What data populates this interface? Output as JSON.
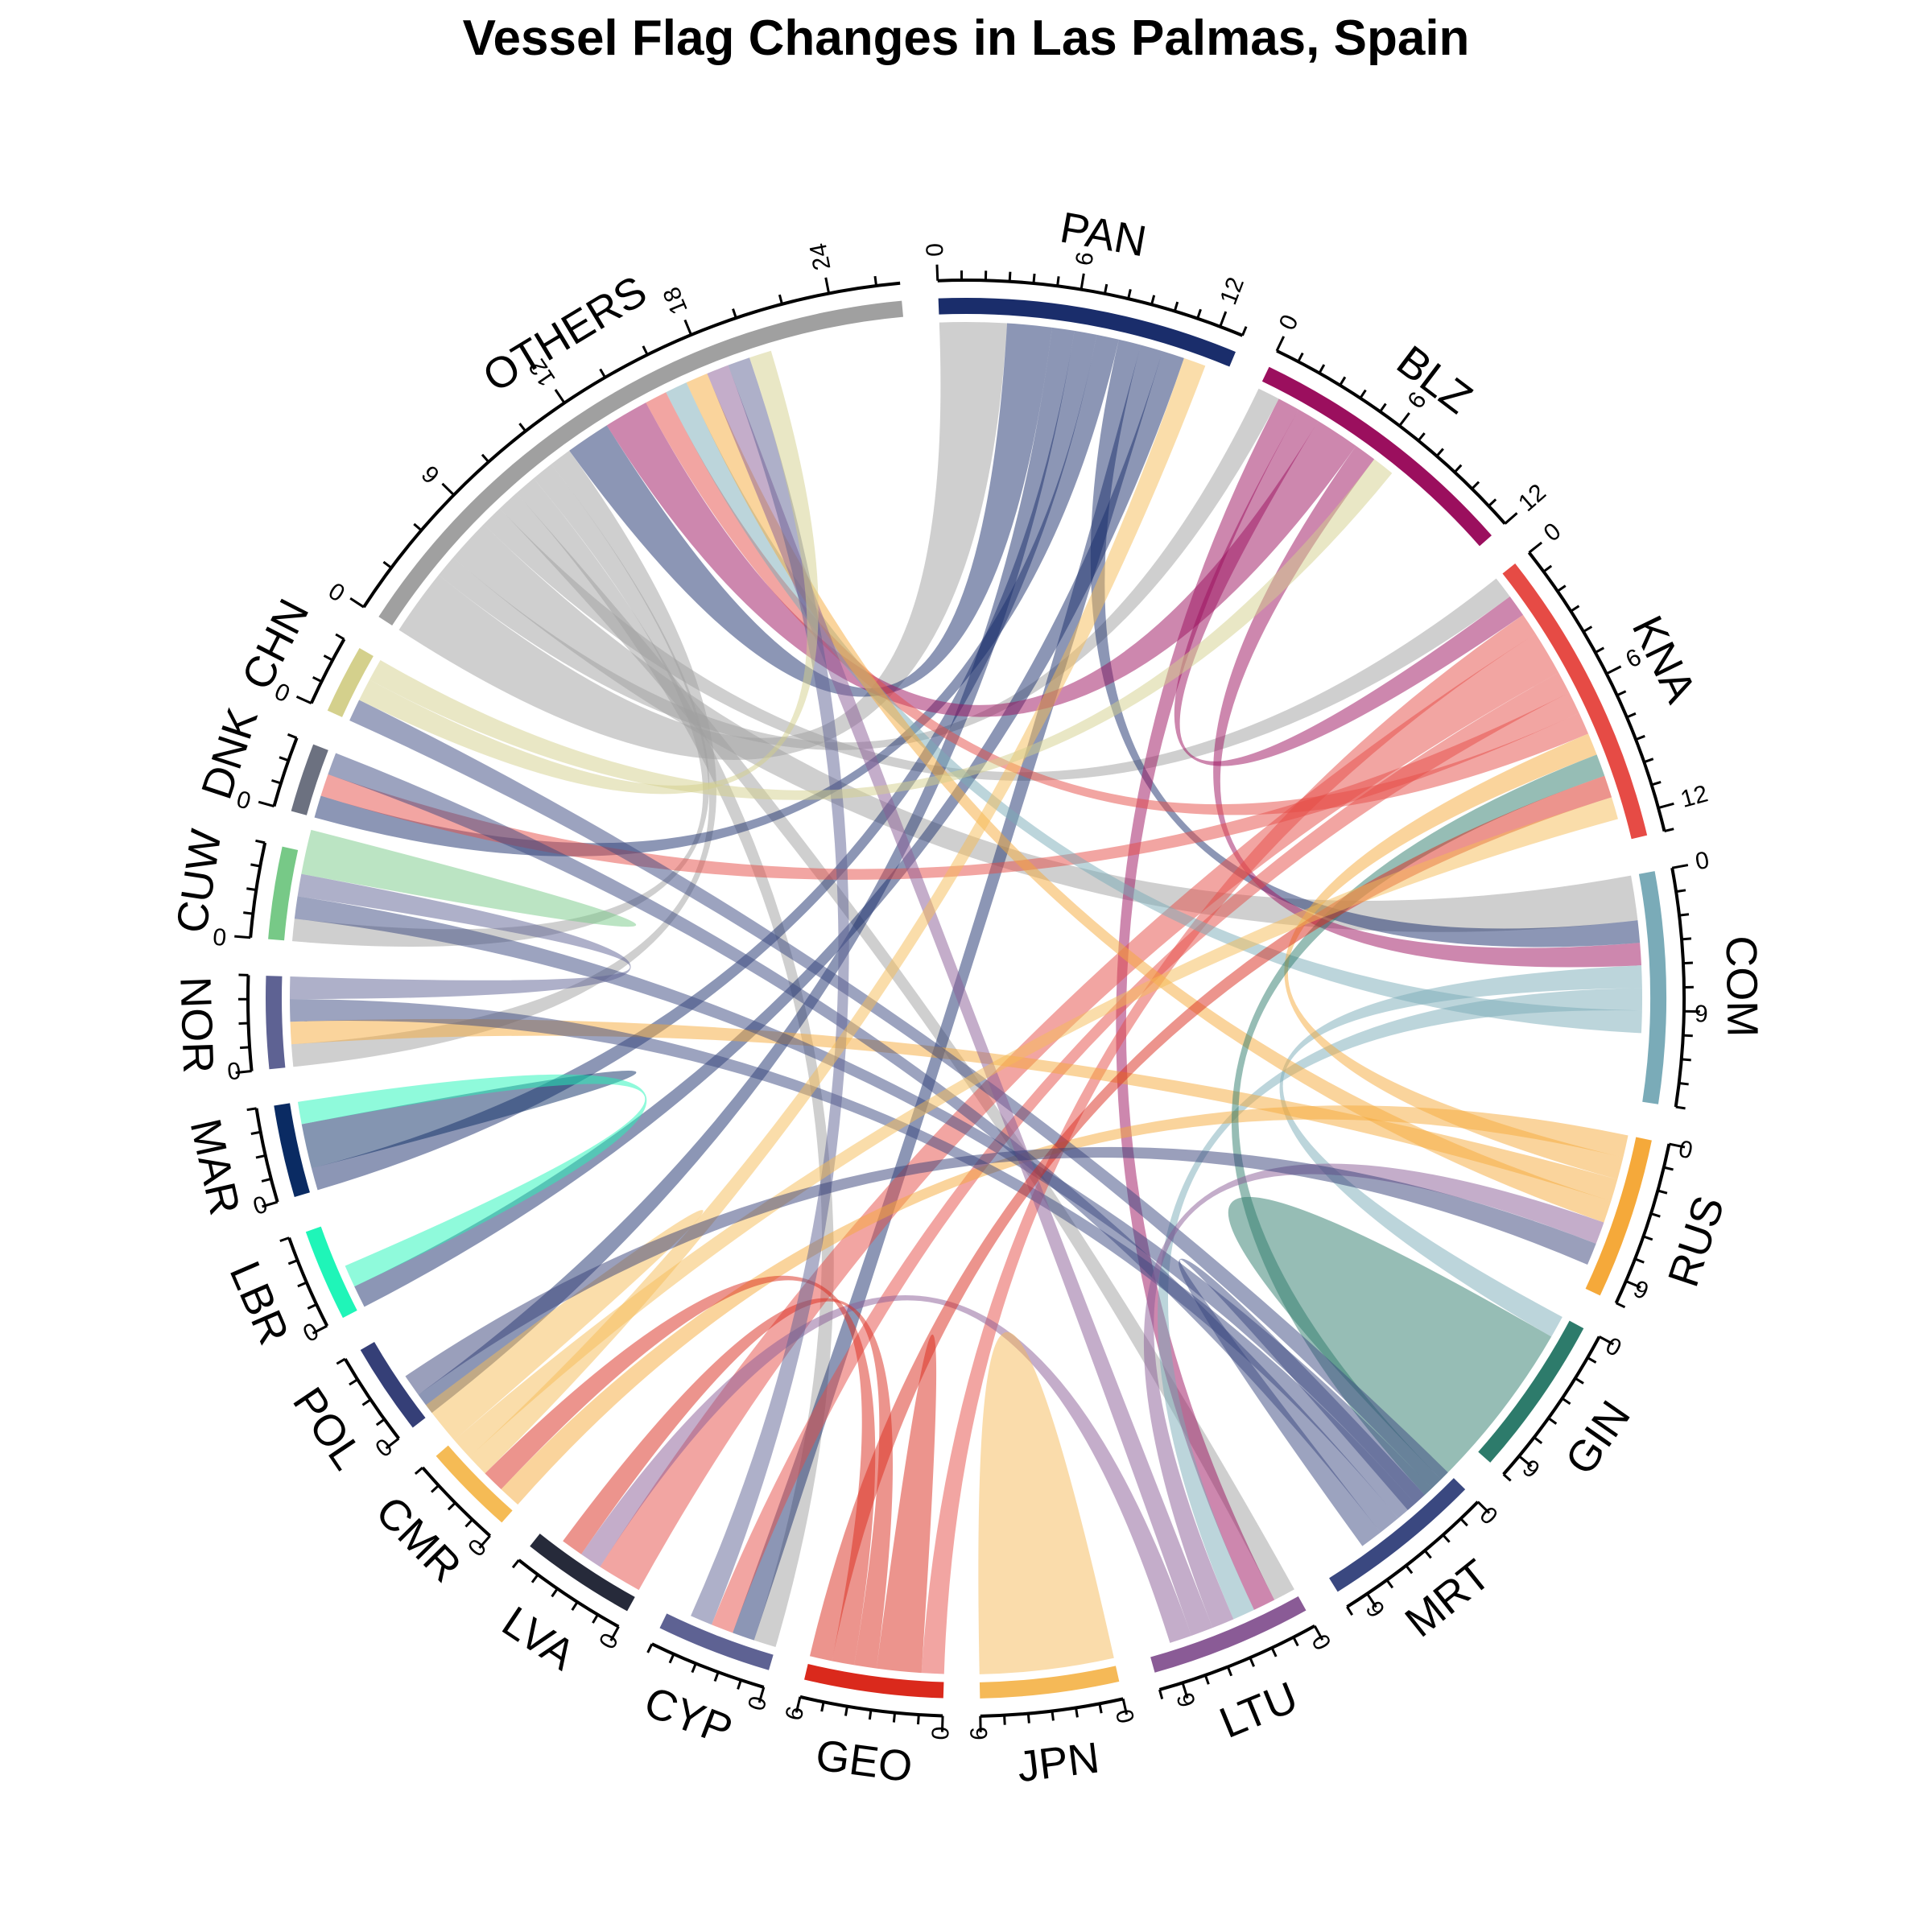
{
  "chart_data": {
    "type": "chord",
    "title": "Vessel Flag Changes in Las Palmas, Spain",
    "sectors": [
      {
        "name": "OTHERS",
        "total": 27,
        "color": "#A0A0A0",
        "ticks": [
          0,
          6,
          12,
          18,
          24
        ],
        "tick_step": 2
      },
      {
        "name": "PAN",
        "total": 13,
        "color": "#1A2D6B",
        "ticks": [
          0,
          6,
          12
        ],
        "tick_step": 1
      },
      {
        "name": "BLZ",
        "total": 12,
        "color": "#9B0F5E",
        "ticks": [
          0,
          6,
          12
        ],
        "tick_step": 1
      },
      {
        "name": "KNA",
        "total": 13,
        "color": "#E64B45",
        "ticks": [
          0,
          6,
          12
        ],
        "tick_step": 1
      },
      {
        "name": "COM",
        "total": 10,
        "color": "#7AABB8",
        "ticks": [
          0,
          6
        ],
        "tick_step": 1
      },
      {
        "name": "RUS",
        "total": 7,
        "color": "#F5A93A",
        "ticks": [
          0,
          6
        ],
        "tick_step": 1
      },
      {
        "name": "GIN",
        "total": 7,
        "color": "#2D7B6B",
        "ticks": [
          0,
          6
        ],
        "tick_step": 1
      },
      {
        "name": "MRT",
        "total": 7,
        "color": "#3A4880",
        "ticks": [
          0,
          6
        ],
        "tick_step": 1
      },
      {
        "name": "LTU",
        "total": 7,
        "color": "#8A5B96",
        "ticks": [
          0,
          6
        ],
        "tick_step": 1
      },
      {
        "name": "JPN",
        "total": 6,
        "color": "#F5B957",
        "ticks": [
          0,
          6
        ],
        "tick_step": 1
      },
      {
        "name": "GEO",
        "total": 6,
        "color": "#DA291C",
        "ticks": [
          0,
          6
        ],
        "tick_step": 1
      },
      {
        "name": "CYP",
        "total": 5,
        "color": "#5E6293",
        "ticks": [
          0
        ],
        "tick_step": 1
      },
      {
        "name": "LVA",
        "total": 5,
        "color": "#262A3A",
        "ticks": [
          0
        ],
        "tick_step": 1
      },
      {
        "name": "CMR",
        "total": 4,
        "color": "#F5BB55",
        "ticks": [
          0
        ],
        "tick_step": 1
      },
      {
        "name": "POL",
        "total": 4,
        "color": "#353F77",
        "ticks": [
          0
        ],
        "tick_step": 1
      },
      {
        "name": "LBR",
        "total": 4,
        "color": "#1FF5B8",
        "ticks": [
          0
        ],
        "tick_step": 1
      },
      {
        "name": "MAR",
        "total": 4,
        "color": "#0A2B63",
        "ticks": [
          0
        ],
        "tick_step": 1
      },
      {
        "name": "NOR",
        "total": 4,
        "color": "#5E6293",
        "ticks": [
          0
        ],
        "tick_step": 1
      },
      {
        "name": "CUW",
        "total": 4,
        "color": "#77C987",
        "ticks": [
          0
        ],
        "tick_step": 1
      },
      {
        "name": "DNK",
        "total": 3,
        "color": "#6C7180",
        "ticks": [
          0
        ],
        "tick_step": 1
      },
      {
        "name": "CHN",
        "total": 3,
        "color": "#D4D08C",
        "ticks": [
          0
        ],
        "tick_step": 1
      }
    ],
    "links": [
      {
        "from": "OTHERS",
        "to": "PAN",
        "value": 3
      },
      {
        "from": "OTHERS",
        "to": "BLZ",
        "value": 1
      },
      {
        "from": "OTHERS",
        "to": "COM",
        "value": 2
      },
      {
        "from": "OTHERS",
        "to": "KNA",
        "value": 1
      },
      {
        "from": "OTHERS",
        "to": "LTU",
        "value": 1
      },
      {
        "from": "OTHERS",
        "to": "CYP",
        "value": 1
      },
      {
        "from": "OTHERS",
        "to": "CUW",
        "value": 1
      },
      {
        "from": "OTHERS",
        "to": "NOR",
        "value": 1
      },
      {
        "from": "PAN",
        "to": "OTHERS",
        "value": 2
      },
      {
        "from": "PAN",
        "to": "POL",
        "value": 1
      },
      {
        "from": "PAN",
        "to": "MAR",
        "value": 1
      },
      {
        "from": "PAN",
        "to": "DNK",
        "value": 1
      },
      {
        "from": "PAN",
        "to": "COM",
        "value": 1
      },
      {
        "from": "PAN",
        "to": "CYP",
        "value": 1
      },
      {
        "from": "PAN",
        "to": "LBR",
        "value": 1
      },
      {
        "from": "BLZ",
        "to": "LTU",
        "value": 1
      },
      {
        "from": "BLZ",
        "to": "KNA",
        "value": 1
      },
      {
        "from": "BLZ",
        "to": "OTHERS",
        "value": 2
      },
      {
        "from": "BLZ",
        "to": "COM",
        "value": 1
      },
      {
        "from": "KNA",
        "to": "GEO",
        "value": 1
      },
      {
        "from": "KNA",
        "to": "LVA",
        "value": 2
      },
      {
        "from": "KNA",
        "to": "CYP",
        "value": 1
      },
      {
        "from": "KNA",
        "to": "DNK",
        "value": 1
      },
      {
        "from": "KNA",
        "to": "OTHERS",
        "value": 1
      },
      {
        "from": "COM",
        "to": "GIN",
        "value": 1
      },
      {
        "from": "COM",
        "to": "LTU",
        "value": 1
      },
      {
        "from": "COM",
        "to": "OTHERS",
        "value": 1
      },
      {
        "from": "RUS",
        "to": "CMR",
        "value": 1
      },
      {
        "from": "RUS",
        "to": "KNA",
        "value": 1
      },
      {
        "from": "RUS",
        "to": "NOR",
        "value": 1
      },
      {
        "from": "RUS",
        "to": "OTHERS",
        "value": 1
      },
      {
        "from": "GIN",
        "to": "GIN",
        "value": 4
      },
      {
        "from": "GIN",
        "to": "KNA",
        "value": 1
      },
      {
        "from": "MRT",
        "to": "CHN",
        "value": 1
      },
      {
        "from": "MRT",
        "to": "CUW",
        "value": 1
      },
      {
        "from": "MRT",
        "to": "NOR",
        "value": 1
      },
      {
        "from": "MRT",
        "to": "DNK",
        "value": 1
      },
      {
        "from": "MRT",
        "to": "GIN",
        "value": 1
      },
      {
        "from": "LTU",
        "to": "RUS",
        "value": 1
      },
      {
        "from": "LTU",
        "to": "OTHERS",
        "value": 1
      },
      {
        "from": "LTU",
        "to": "LVA",
        "value": 1
      },
      {
        "from": "JPN",
        "to": "JPN",
        "value": 3
      },
      {
        "from": "GEO",
        "to": "GEO",
        "value": 1
      },
      {
        "from": "GEO",
        "to": "LVA",
        "value": 1
      },
      {
        "from": "GEO",
        "to": "CMR",
        "value": 1
      },
      {
        "from": "GEO",
        "to": "KNA",
        "value": 1
      },
      {
        "from": "CYP",
        "to": "OTHERS",
        "value": 1
      },
      {
        "from": "CMR",
        "to": "PAN",
        "value": 1
      },
      {
        "from": "CMR",
        "to": "KNA",
        "value": 1
      },
      {
        "from": "CMR",
        "to": "CMR",
        "value": 1
      },
      {
        "from": "POL",
        "to": "RUS",
        "value": 1
      },
      {
        "from": "MAR",
        "to": "MAR",
        "value": 1
      },
      {
        "from": "LBR",
        "to": "MAR",
        "value": 1
      },
      {
        "from": "NOR",
        "to": "CUW",
        "value": 1
      },
      {
        "from": "CUW",
        "to": "CUW",
        "value": 1
      },
      {
        "from": "CHN",
        "to": "OTHERS",
        "value": 1
      },
      {
        "from": "CHN",
        "to": "BLZ",
        "value": 1
      }
    ]
  }
}
